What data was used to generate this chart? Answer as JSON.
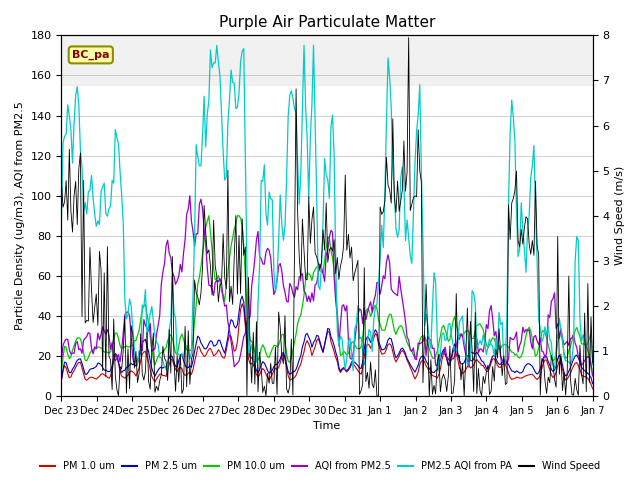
{
  "title": "Purple Air Particulate Matter",
  "xlabel": "Time",
  "ylabel_left": "Particle Density (ug/m3), AQI from PM2.5",
  "ylabel_right": "Wind Speed (m/s)",
  "site_label": "BC_pa",
  "ylim_left": [
    0,
    180
  ],
  "ylim_right": [
    0,
    8.0
  ],
  "x_tick_labels": [
    "Dec 23",
    "Dec 24",
    "Dec 25",
    "Dec 26",
    "Dec 27",
    "Dec 28",
    "Dec 29",
    "Dec 30",
    "Dec 31",
    "Jan 1",
    "Jan 2",
    "Jan 3",
    "Jan 4",
    "Jan 5",
    "Jan 6",
    "Jan 7"
  ],
  "colors": {
    "pm1": "#cc0000",
    "pm25": "#0000cc",
    "pm10": "#00cc00",
    "aqi_pm25": "#9900cc",
    "aqi_pa": "#00cccc",
    "wind": "#000000",
    "bg_band": "#e8e8e8"
  },
  "legend_labels": [
    "PM 1.0 um",
    "PM 2.5 um",
    "PM 10.0 um",
    "AQI from PM2.5",
    "PM2.5 AQI from PA",
    "Wind Speed"
  ],
  "n_points": 336
}
